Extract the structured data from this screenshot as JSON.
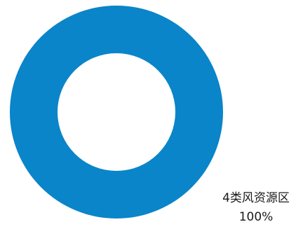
{
  "chart_data": {
    "type": "pie",
    "donut": true,
    "slices": [
      {
        "label": "4类风资源区",
        "value_label": "100%",
        "value": 100,
        "color": "#0a85c9"
      }
    ],
    "legend": "none"
  }
}
